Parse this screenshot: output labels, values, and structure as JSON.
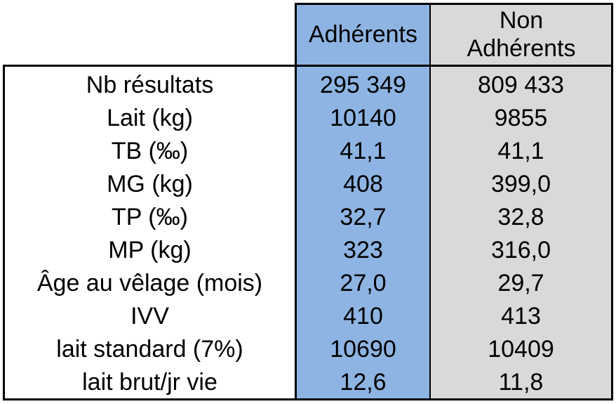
{
  "columns": {
    "adherents": "Adhérents",
    "non_line1": "Non",
    "non_line2": "Adhérents"
  },
  "colors": {
    "adherents_bg": "#8eb4e3",
    "non_adherents_bg": "#d9d9d9"
  },
  "rows": [
    {
      "label": "Nb résultats",
      "adherents": "295 349",
      "non_adherents": "809 433"
    },
    {
      "label": "Lait (kg)",
      "adherents": "10140",
      "non_adherents": "9855"
    },
    {
      "label": "TB (‰)",
      "adherents": "41,1",
      "non_adherents": "41,1"
    },
    {
      "label": "MG (kg)",
      "adherents": "408",
      "non_adherents": "399,0"
    },
    {
      "label": "TP (‰)",
      "adherents": "32,7",
      "non_adherents": "32,8"
    },
    {
      "label": "MP (kg)",
      "adherents": "323",
      "non_adherents": "316,0"
    },
    {
      "label": "Âge au vêlage (mois)",
      "adherents": "27,0",
      "non_adherents": "29,7"
    },
    {
      "label": "IVV",
      "adherents": "410",
      "non_adherents": "413"
    },
    {
      "label": "lait standard (7%)",
      "adherents": "10690",
      "non_adherents": "10409"
    },
    {
      "label": "lait brut/jr vie",
      "adherents": "12,6",
      "non_adherents": "11,8"
    }
  ]
}
